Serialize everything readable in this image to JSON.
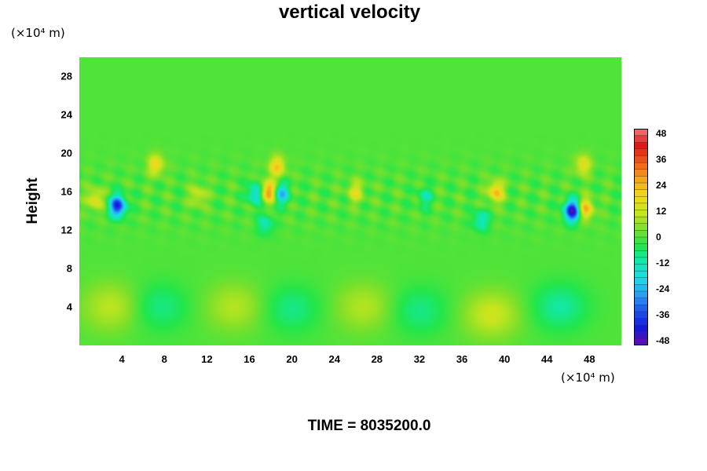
{
  "chart_data": {
    "type": "heatmap",
    "title": "vertical velocity",
    "ylabel": "Height",
    "xunit": "(×10⁴ m)",
    "yunit": "(×10⁴ m)",
    "xlim": [
      0,
      51
    ],
    "ylim": [
      0,
      30
    ],
    "xticks": [
      "4",
      "8",
      "12",
      "16",
      "20",
      "24",
      "28",
      "32",
      "36",
      "40",
      "44",
      "48"
    ],
    "yticks": [
      "4",
      "8",
      "12",
      "16",
      "20",
      "24",
      "28"
    ],
    "colorbar": {
      "ticks": [
        "48",
        "36",
        "24",
        "12",
        "0",
        "-12",
        "-24",
        "-36",
        "-48"
      ],
      "range": [
        -48,
        48
      ],
      "colors": [
        "#6a0dad",
        "#1818d8",
        "#1c4cf2",
        "#2a9df4",
        "#20d9e6",
        "#10e8b0",
        "#22e64a",
        "#7ee02a",
        "#c8e51e",
        "#f2d81c",
        "#f4a21a",
        "#f05a1a",
        "#e01818",
        "#f07a7a"
      ]
    },
    "features": [
      {
        "x": 3.6,
        "y": 14.5,
        "value": -38
      },
      {
        "x": 1.5,
        "y": 15.2,
        "value": 16
      },
      {
        "x": 7.2,
        "y": 18.8,
        "value": 18
      },
      {
        "x": 17.8,
        "y": 16.0,
        "value": 30
      },
      {
        "x": 18.6,
        "y": 18.6,
        "value": 20
      },
      {
        "x": 16.6,
        "y": 15.8,
        "value": -20
      },
      {
        "x": 19.0,
        "y": 15.8,
        "value": -22
      },
      {
        "x": 17.5,
        "y": 12.6,
        "value": -12
      },
      {
        "x": 26.0,
        "y": 16.0,
        "value": 14
      },
      {
        "x": 39.2,
        "y": 16.0,
        "value": 22
      },
      {
        "x": 37.8,
        "y": 13.0,
        "value": -14
      },
      {
        "x": 46.4,
        "y": 14.0,
        "value": -44
      },
      {
        "x": 47.6,
        "y": 14.2,
        "value": 24
      },
      {
        "x": 47.4,
        "y": 18.8,
        "value": 16
      },
      {
        "x": 11.2,
        "y": 15.6,
        "value": 12
      },
      {
        "x": 32.5,
        "y": 15.4,
        "value": -10
      },
      {
        "x": 3.0,
        "y": 4.0,
        "value": 10
      },
      {
        "x": 7.6,
        "y": 4.0,
        "value": -8
      },
      {
        "x": 14.6,
        "y": 4.0,
        "value": 9
      },
      {
        "x": 20.0,
        "y": 3.8,
        "value": -8
      },
      {
        "x": 26.8,
        "y": 4.0,
        "value": 9
      },
      {
        "x": 32.0,
        "y": 3.6,
        "value": -8
      },
      {
        "x": 38.8,
        "y": 3.2,
        "value": 12
      },
      {
        "x": 45.2,
        "y": 4.0,
        "value": -10
      }
    ]
  },
  "footer": {
    "time_label": "TIME = 8035200.0"
  }
}
